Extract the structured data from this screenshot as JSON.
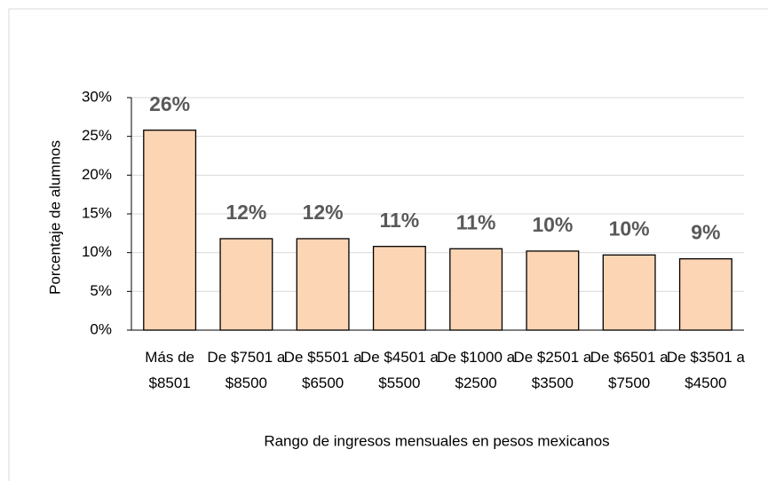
{
  "chart_data": {
    "type": "bar",
    "y_label": "Porcentaje de alumnos",
    "x_label": "Rango de ingresos mensuales en pesos mexicanos",
    "categories": [
      "Más de $8501",
      "De $7501 a $8500",
      "De $5501 a $6500",
      "De $4501 a $5500",
      "De $1000 a $2500",
      "De $2501 a $3500",
      "De $6501 a $7500",
      "De $3501 a $4500"
    ],
    "values": [
      25.8,
      11.8,
      11.8,
      10.8,
      10.5,
      10.2,
      9.7,
      9.2
    ],
    "value_labels": [
      "26%",
      "12%",
      "12%",
      "11%",
      "11%",
      "10%",
      "10%",
      "9%"
    ],
    "color": "#fcd5b4",
    "ylim": [
      0,
      30
    ],
    "yticks": [
      {
        "value": 0,
        "label": "0%"
      },
      {
        "value": 5,
        "label": "5%"
      },
      {
        "value": 10,
        "label": "10%"
      },
      {
        "value": 15,
        "label": "15%"
      },
      {
        "value": 20,
        "label": "20%"
      },
      {
        "value": 25,
        "label": "25%"
      },
      {
        "value": 30,
        "label": "30%"
      }
    ],
    "grid": true
  }
}
